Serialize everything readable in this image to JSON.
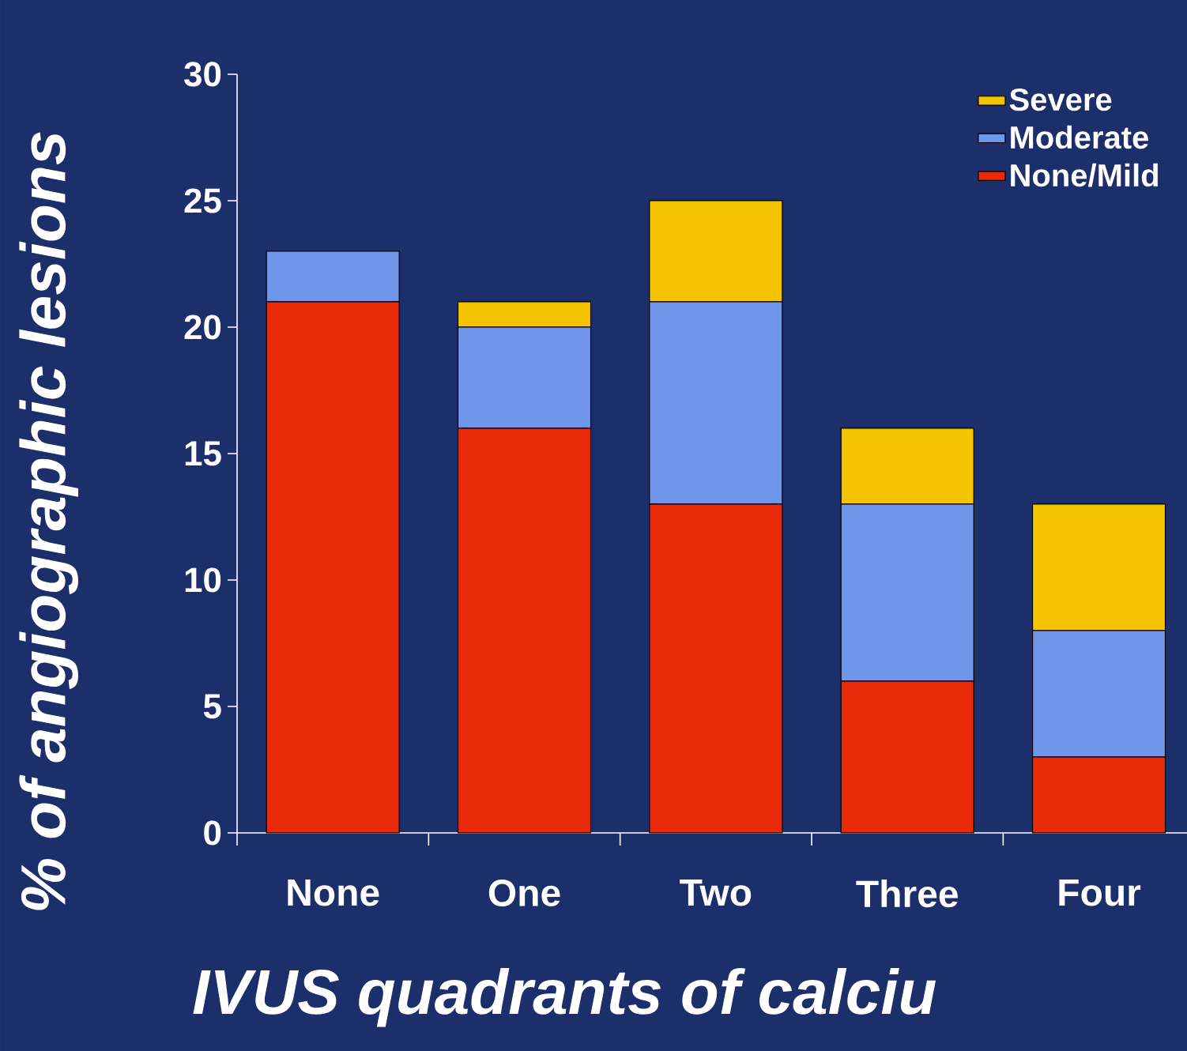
{
  "chart_data": {
    "type": "bar",
    "stacked": true,
    "xlabel": "IVUS quadrants of calciu",
    "ylabel": "% of angiographic lesions",
    "categories": [
      "None",
      "One",
      "Two",
      "Three",
      "Four"
    ],
    "series": [
      {
        "name": "None/Mild",
        "color": "#e82a0a",
        "values": [
          21,
          16,
          13,
          6,
          3
        ]
      },
      {
        "name": "Moderate",
        "color": "#6f96e8",
        "values": [
          2,
          4,
          8,
          7,
          5
        ]
      },
      {
        "name": "Severe",
        "color": "#f5c400",
        "values": [
          0,
          1,
          4,
          3,
          5
        ]
      }
    ],
    "ylim": [
      0,
      30
    ],
    "yticks": [
      0,
      5,
      10,
      15,
      20,
      25,
      30
    ],
    "legend": "top right",
    "grid": false
  }
}
